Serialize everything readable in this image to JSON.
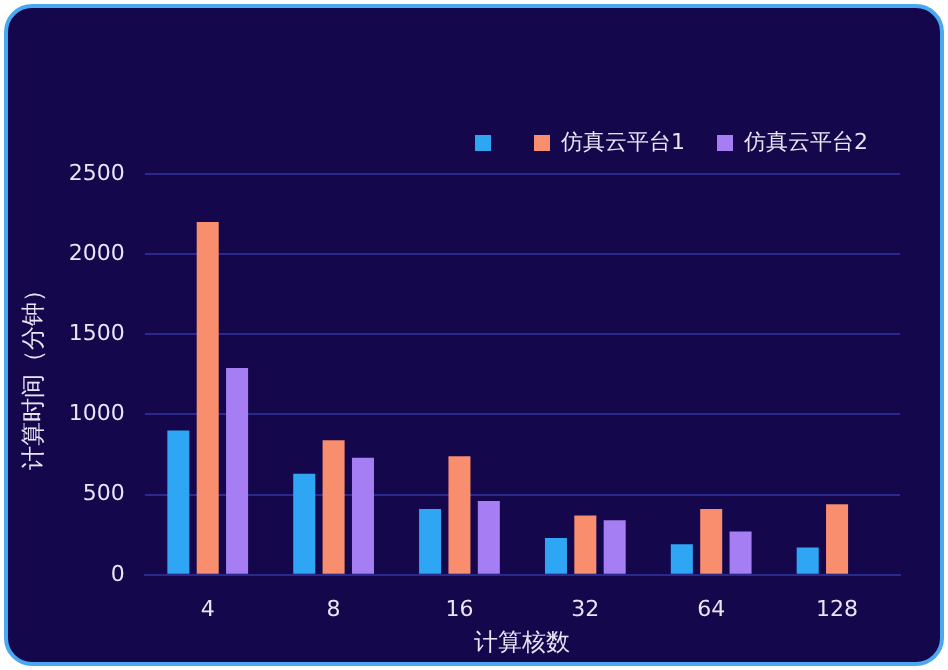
{
  "chart_data": {
    "type": "bar",
    "xlabel": "计算核数",
    "ylabel": "计算时间（分钟）",
    "categories": [
      "4",
      "8",
      "16",
      "32",
      "64",
      "128"
    ],
    "series": [
      {
        "color": "#2fa6f3",
        "values": [
          900,
          630,
          410,
          230,
          190,
          170
        ]
      },
      {
        "name": "仿真云平台1",
        "color": "#f98e6e",
        "values": [
          2200,
          840,
          740,
          370,
          410,
          440
        ]
      },
      {
        "name": "仿真云平台2",
        "color": "#a57ef3",
        "values": [
          1290,
          730,
          460,
          340,
          270,
          null
        ]
      }
    ],
    "ylim": [
      0,
      2500
    ],
    "yticks": [
      0,
      500,
      1000,
      1500,
      2000,
      2500
    ],
    "grid": "y",
    "legend": "top right"
  }
}
